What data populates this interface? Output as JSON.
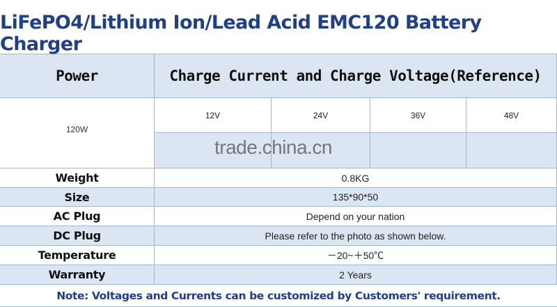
{
  "title": "LiFePO4/Lithium Ion/Lead Acid EMC120 Battery Charger",
  "header": {
    "power": "Power",
    "charge": "Charge Current and Charge Voltage(Reference)"
  },
  "power_value": "120W",
  "voltages": [
    "12V",
    "24V",
    "36V",
    "48V"
  ],
  "watermark": "trade.china.cn",
  "rows": [
    {
      "label": "Weight",
      "value": "0.8KG"
    },
    {
      "label": "Size",
      "value": "135*90*50"
    },
    {
      "label": "AC Plug",
      "value": "Depend on your nation"
    },
    {
      "label": "DC Plug",
      "value": "Please refer to the photo as shown below."
    },
    {
      "label": "Temperature",
      "value": "－20~＋50℃"
    },
    {
      "label": "Warranty",
      "value": "2 Years"
    }
  ],
  "note": "Note: Voltages and Currents can be customized by Customers' requirement.",
  "colors": {
    "title": "#1f3f87",
    "header_bg": "#dce6f2",
    "border": "#9cb8d8"
  }
}
